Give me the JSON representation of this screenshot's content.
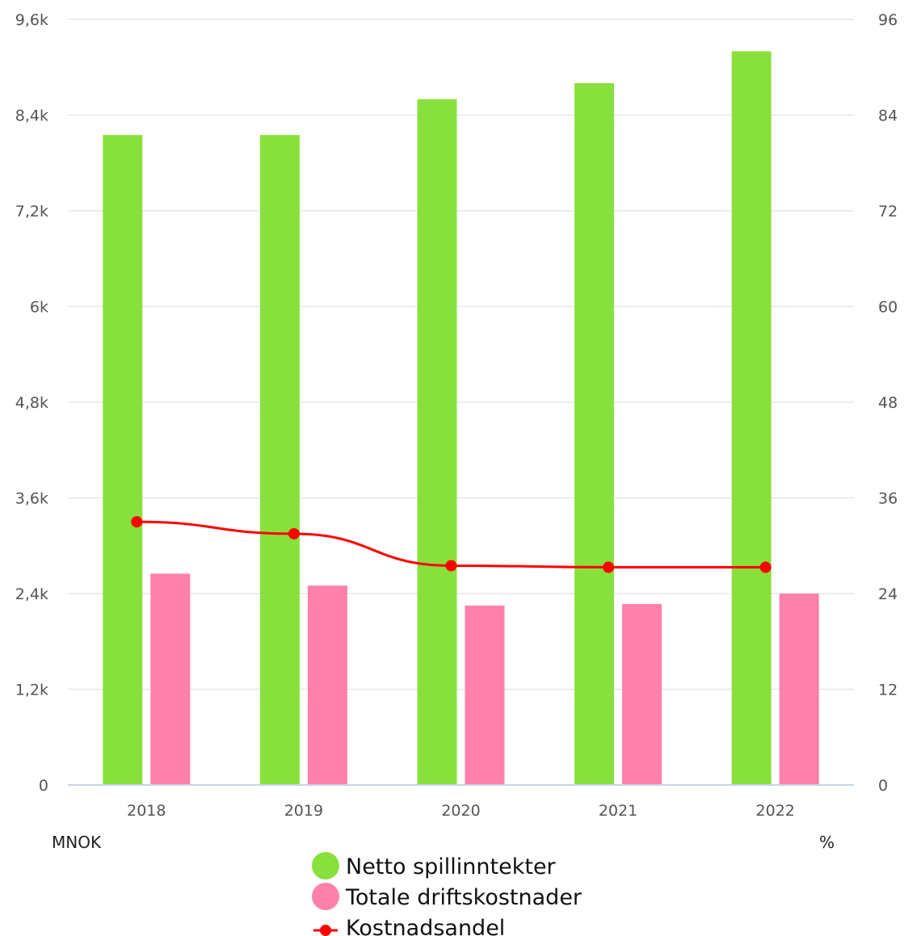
{
  "chart_data": {
    "type": "bar",
    "categories": [
      "2018",
      "2019",
      "2020",
      "2021",
      "2022"
    ],
    "series": [
      {
        "name": "Netto spillinntekter",
        "kind": "bar",
        "axis": "left",
        "color": "#88e03c",
        "values": [
          8150,
          8150,
          8600,
          8800,
          9200
        ]
      },
      {
        "name": "Totale driftskostnader",
        "kind": "bar",
        "axis": "left",
        "color": "#ff80aa",
        "values": [
          2650,
          2500,
          2250,
          2270,
          2400
        ]
      },
      {
        "name": "Kostnadsandel",
        "kind": "line",
        "axis": "right",
        "color": "#ff0000",
        "values": [
          33.0,
          31.5,
          27.5,
          27.3,
          27.3
        ]
      }
    ],
    "y_left": {
      "label": "MNOK",
      "ylim": [
        0,
        9600
      ],
      "ticks": [
        "0",
        "1,2k",
        "2,4k",
        "3,6k",
        "4,8k",
        "6k",
        "7,2k",
        "8,4k",
        "9,6k"
      ]
    },
    "y_right": {
      "label": "%",
      "ylim": [
        0,
        96
      ],
      "ticks": [
        "0",
        "12",
        "24",
        "36",
        "48",
        "60",
        "72",
        "84",
        "96"
      ]
    },
    "grid": true,
    "legend_position": "bottom-center"
  }
}
